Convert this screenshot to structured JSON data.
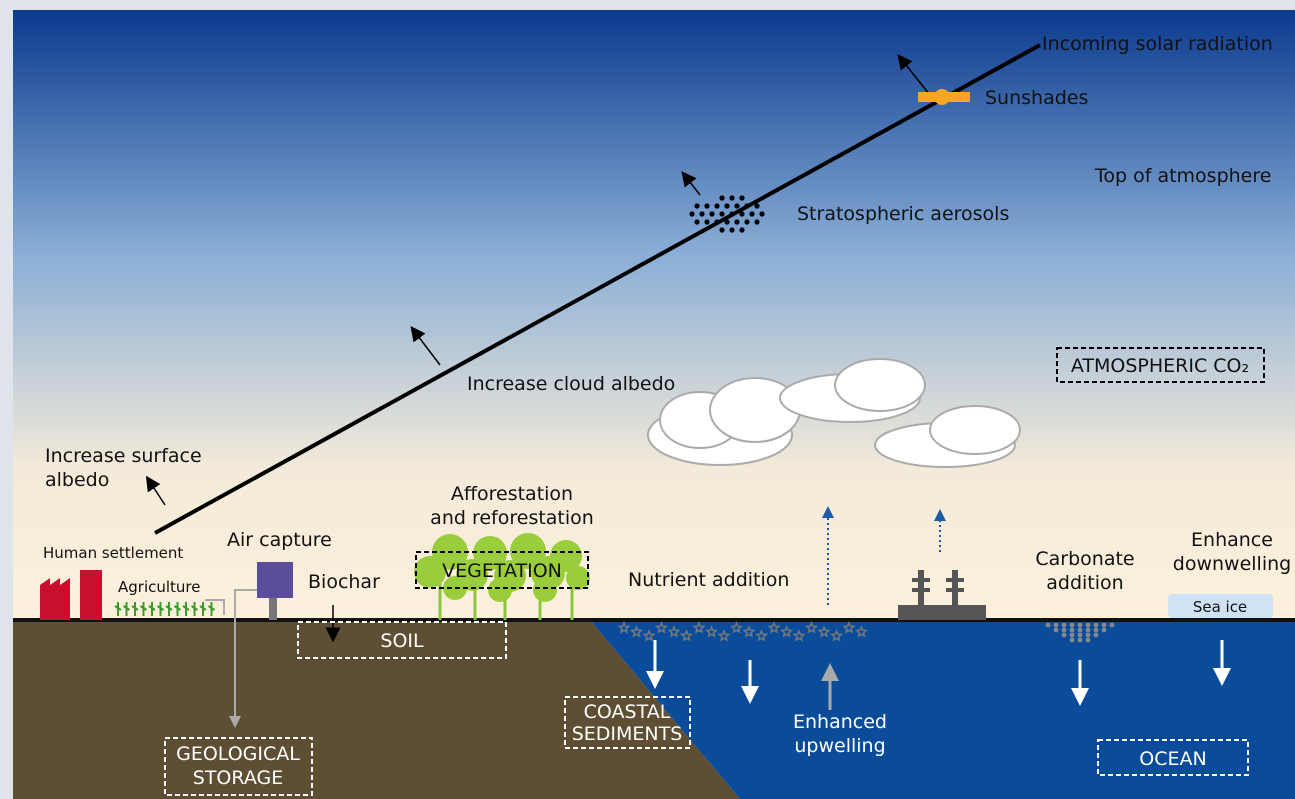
{
  "labels": {
    "incoming_solar_radiation": "Incoming solar radiation",
    "sunshades": "Sunshades",
    "top_of_atmosphere": "Top of atmosphere",
    "stratospheric_aerosols": "Stratospheric aerosols",
    "atmospheric_co2": "ATMOSPHERIC CO₂",
    "increase_cloud_albedo": "Increase cloud albedo",
    "increase_surface_albedo": [
      "Increase surface",
      "albedo"
    ],
    "afforestation": [
      "Afforestation",
      "and reforestation"
    ],
    "human_settlement": "Human settlement",
    "agriculture": "Agriculture",
    "air_capture": "Air capture",
    "biochar": "Biochar",
    "vegetation": "VEGETATION",
    "nutrient_addition": "Nutrient addition",
    "carbonate_addition": [
      "Carbonate",
      "addition"
    ],
    "enhance_downwelling": [
      "Enhance",
      "downwelling"
    ],
    "sea_ice": "Sea ice",
    "soil": "SOIL",
    "geological_storage": [
      "GEOLOGICAL",
      "STORAGE"
    ],
    "coastal_sediments": [
      "COASTAL",
      "SEDIMENTS"
    ],
    "enhanced_upwelling": [
      "Enhanced",
      "upwelling"
    ],
    "ocean": "OCEAN"
  }
}
